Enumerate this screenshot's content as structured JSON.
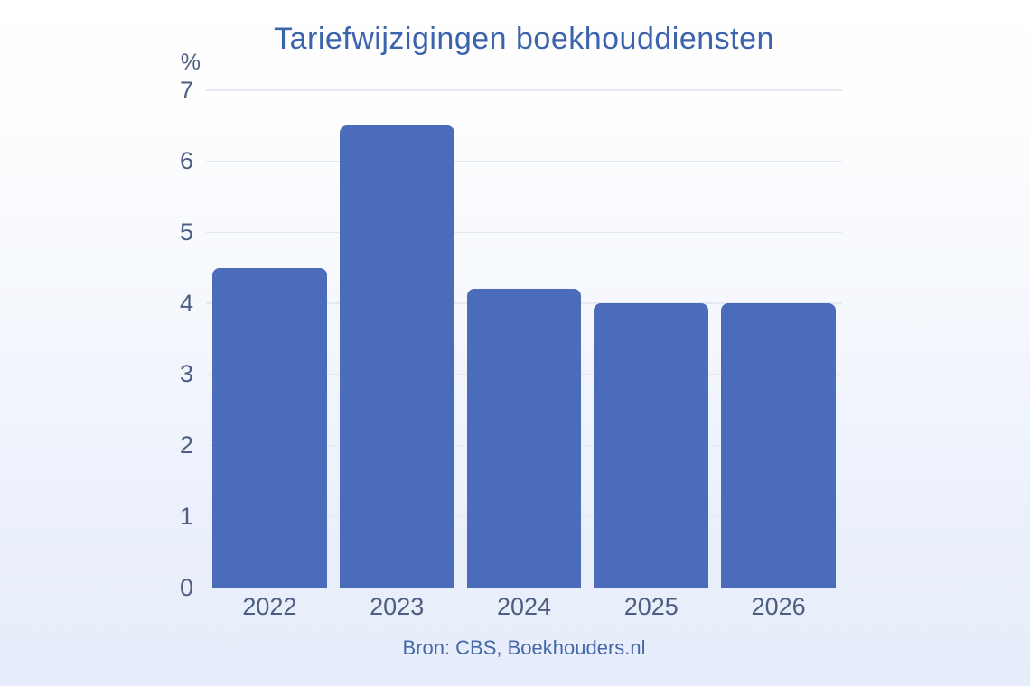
{
  "chart_data": {
    "type": "bar",
    "title": "Tariefwijzigingen boekhouddiensten",
    "unit_label": "%",
    "categories": [
      "2022",
      "2023",
      "2024",
      "2025",
      "2026"
    ],
    "values": [
      4.5,
      6.5,
      4.2,
      4.0,
      4.0
    ],
    "ylim": [
      0,
      7
    ],
    "yticks": [
      0,
      1,
      2,
      3,
      4,
      5,
      6,
      7
    ],
    "grid": true,
    "legend": "none",
    "source": "Bron: CBS, Boekhouders.nl",
    "colors": {
      "bar": "#4a6cba",
      "title": "#3c64ad",
      "tick_labels": "#4d5e82",
      "source_text": "#4568a6",
      "gridline": "#e4e8f0",
      "background_top": "#ffffff",
      "background_bottom": "#e6ecfa"
    }
  }
}
